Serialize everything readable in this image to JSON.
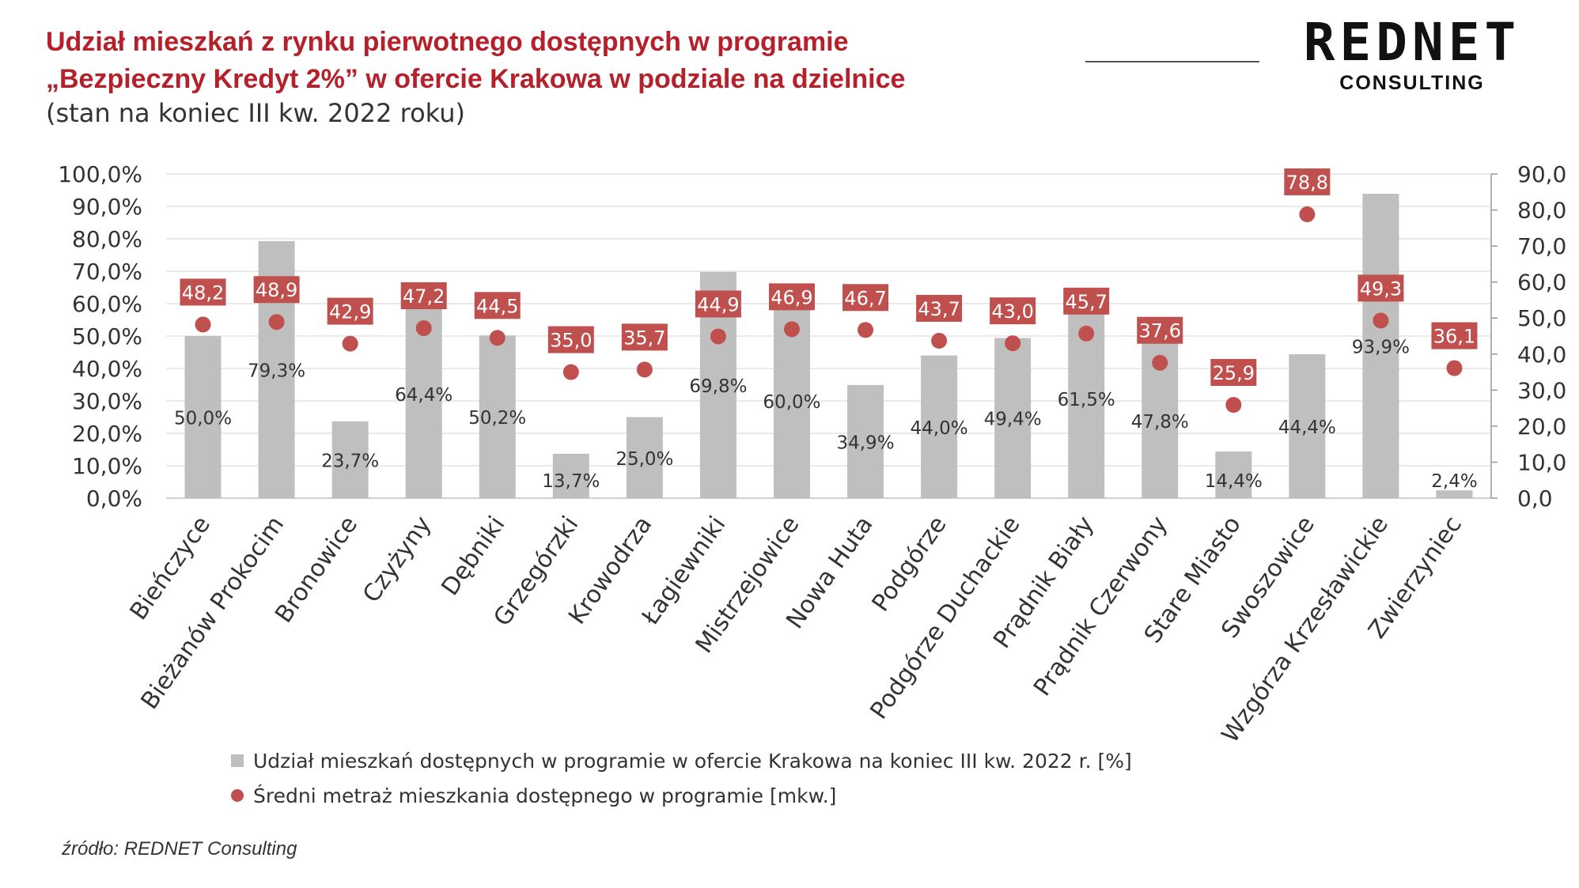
{
  "title_line1": "Udział mieszkań z rynku pierwotnego dostępnych w programie",
  "title_line2": "„Bezpieczny Kredyt 2%” w ofercie Krakowa w podziale na dzielnice",
  "subtitle": "(stan na koniec III kw. 2022 roku)",
  "logo": {
    "main": "REDNET",
    "sub": "CONSULTING"
  },
  "source": "źródło: REDNET Consulting",
  "colors": {
    "title": "#b5202a",
    "bar": "#bfbfbf",
    "dot": "#c0504d",
    "label_box": "#c0504d"
  },
  "chart_data": {
    "type": "bar",
    "categories": [
      "Bieńczyce",
      "Bieżanów Prokocim",
      "Bronowice",
      "Czyżyny",
      "Dębniki",
      "Grzegórzki",
      "Krowodrza",
      "Łagiewniki",
      "Mistrzejowice",
      "Nowa Huta",
      "Podgórze",
      "Podgórze Duchackie",
      "Prądnik Biały",
      "Prądnik Czerwony",
      "Stare Miasto",
      "Swoszowice",
      "Wzgórza Krzesławickie",
      "Zwierzyniec"
    ],
    "series": [
      {
        "name": "Udział mieszkań dostępnych w programie w ofercie Krakowa na koniec III kw. 2022 r. [%]",
        "type": "bar",
        "axis": "left",
        "values": [
          50.0,
          79.3,
          23.7,
          64.4,
          50.2,
          13.7,
          25.0,
          69.8,
          60.0,
          34.9,
          44.0,
          49.4,
          61.5,
          47.8,
          14.4,
          44.4,
          93.9,
          2.4
        ],
        "labels": [
          "50,0%",
          "79,3%",
          "23,7%",
          "64,4%",
          "50,2%",
          "13,7%",
          "25,0%",
          "69,8%",
          "60,0%",
          "34,9%",
          "44,0%",
          "49,4%",
          "61,5%",
          "47,8%",
          "14,4%",
          "44,4%",
          "93,9%",
          "2,4%"
        ]
      },
      {
        "name": "Średni metraż mieszkania dostępnego w programie [mkw.]",
        "type": "scatter",
        "axis": "right",
        "values": [
          48.2,
          48.9,
          42.9,
          47.2,
          44.5,
          35.0,
          35.7,
          44.9,
          46.9,
          46.7,
          43.7,
          43.0,
          45.7,
          37.6,
          25.9,
          78.8,
          49.3,
          36.1
        ],
        "labels": [
          "48,2",
          "48,9",
          "42,9",
          "47,2",
          "44,5",
          "35,0",
          "35,7",
          "44,9",
          "46,9",
          "46,7",
          "43,7",
          "43,0",
          "45,7",
          "37,6",
          "25,9",
          "78,8",
          "49,3",
          "36,1"
        ]
      }
    ],
    "y_left": {
      "lim": [
        0,
        100
      ],
      "ticks": [
        "0,0%",
        "10,0%",
        "20,0%",
        "30,0%",
        "40,0%",
        "50,0%",
        "60,0%",
        "70,0%",
        "80,0%",
        "90,0%",
        "100,0%"
      ]
    },
    "y_right": {
      "lim": [
        0,
        90
      ],
      "ticks": [
        "0,0",
        "10,0",
        "20,0",
        "30,0",
        "40,0",
        "50,0",
        "60,0",
        "70,0",
        "80,0",
        "90,0"
      ]
    },
    "grid": true,
    "legend_position": "bottom"
  }
}
